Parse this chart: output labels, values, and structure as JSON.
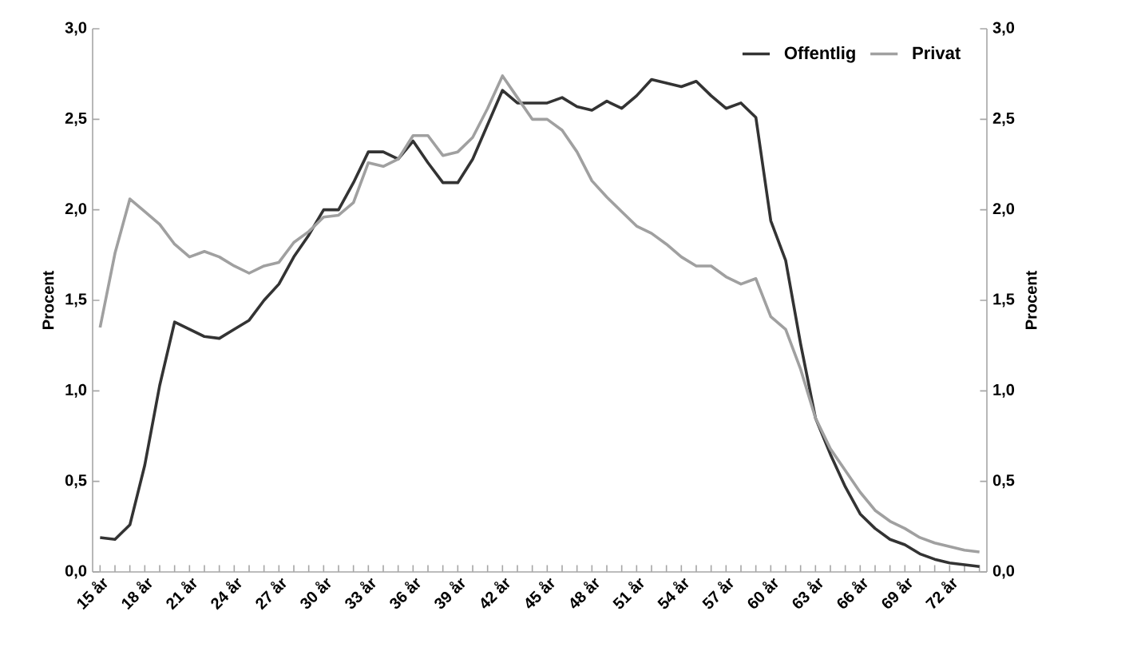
{
  "chart_data": {
    "type": "line",
    "categories": [
      "15 år",
      null,
      null,
      "18 år",
      null,
      null,
      "21 år",
      null,
      null,
      "24 år",
      null,
      null,
      "27 år",
      null,
      null,
      "30 år",
      null,
      null,
      "33 år",
      null,
      null,
      "36 år",
      null,
      null,
      "39 år",
      null,
      null,
      "42 år",
      null,
      null,
      "45 år",
      null,
      null,
      "48 år",
      null,
      null,
      "51 år",
      null,
      null,
      "54 år",
      null,
      null,
      "57 år",
      null,
      null,
      "60 år",
      null,
      null,
      "63 år",
      null,
      null,
      "66 år",
      null,
      null,
      "69 år",
      null,
      null,
      "72 år",
      null,
      null
    ],
    "series": [
      {
        "name": "Offentlig",
        "color": "#333333",
        "values": [
          0.19,
          0.18,
          0.26,
          0.59,
          1.03,
          1.38,
          1.34,
          1.3,
          1.29,
          1.34,
          1.39,
          1.5,
          1.59,
          1.74,
          1.86,
          2.0,
          2.0,
          2.15,
          2.32,
          2.32,
          2.28,
          2.38,
          2.26,
          2.15,
          2.15,
          2.28,
          2.47,
          2.66,
          2.59,
          2.59,
          2.59,
          2.62,
          2.57,
          2.55,
          2.6,
          2.56,
          2.63,
          2.72,
          2.7,
          2.68,
          2.71,
          2.63,
          2.56,
          2.59,
          2.51,
          1.94,
          1.72,
          1.26,
          0.85,
          0.65,
          0.47,
          0.32,
          0.24,
          0.18,
          0.15,
          0.1,
          0.07,
          0.05,
          0.04,
          0.03
        ]
      },
      {
        "name": "Privat",
        "color": "#a0a0a0",
        "values": [
          1.35,
          1.76,
          2.06,
          1.99,
          1.92,
          1.81,
          1.74,
          1.77,
          1.74,
          1.69,
          1.65,
          1.69,
          1.71,
          1.82,
          1.88,
          1.96,
          1.97,
          2.04,
          2.26,
          2.24,
          2.28,
          2.41,
          2.41,
          2.3,
          2.32,
          2.4,
          2.56,
          2.74,
          2.62,
          2.5,
          2.5,
          2.44,
          2.32,
          2.16,
          2.07,
          1.99,
          1.91,
          1.87,
          1.81,
          1.74,
          1.69,
          1.69,
          1.63,
          1.59,
          1.62,
          1.41,
          1.34,
          1.12,
          0.85,
          0.68,
          0.56,
          0.44,
          0.34,
          0.28,
          0.24,
          0.19,
          0.16,
          0.14,
          0.12,
          0.11
        ]
      }
    ],
    "ylabel": "Procent",
    "y2label": "Procent",
    "ylim": [
      0,
      3
    ],
    "yticks": [
      {
        "value": 0,
        "label": "0,0"
      },
      {
        "value": 0.5,
        "label": "0,5"
      },
      {
        "value": 1,
        "label": "1,0"
      },
      {
        "value": 1.5,
        "label": "1,5"
      },
      {
        "value": 2,
        "label": "2,0"
      },
      {
        "value": 2.5,
        "label": "2,5"
      },
      {
        "value": 3,
        "label": "3,0"
      }
    ],
    "y2lim": [
      0,
      3
    ],
    "y2ticks": [
      {
        "value": 0,
        "label": "0,0"
      },
      {
        "value": 0.5,
        "label": "0,5"
      },
      {
        "value": 1,
        "label": "1,0"
      },
      {
        "value": 1.5,
        "label": "1,5"
      },
      {
        "value": 2,
        "label": "2,0"
      },
      {
        "value": 2.5,
        "label": "2,5"
      },
      {
        "value": 3,
        "label": "3,0"
      }
    ],
    "legend": "top right",
    "grid": false,
    "marker": "none",
    "line_style": "solid"
  }
}
